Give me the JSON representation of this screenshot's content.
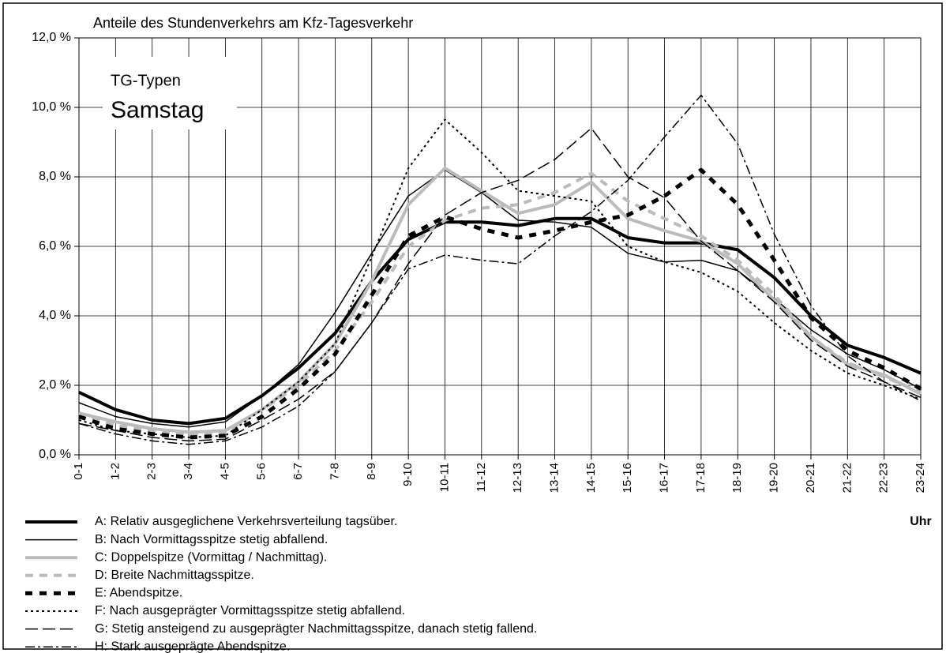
{
  "chart_data": {
    "type": "line",
    "title": "Anteile des Stundenverkehrs am Kfz-Tagesverkehr",
    "inset_title": "TG-Typen",
    "inset_subtitle": "Samstag",
    "x_label": "Uhr",
    "categories": [
      "0-1",
      "1-2",
      "2-3",
      "3-4",
      "4-5",
      "5-6",
      "6-7",
      "7-8",
      "8-9",
      "9-10",
      "10-11",
      "11-12",
      "12-13",
      "13-14",
      "14-15",
      "15-16",
      "16-17",
      "17-18",
      "18-19",
      "19-20",
      "20-21",
      "21-22",
      "22-23",
      "23-24"
    ],
    "ylim": [
      0,
      12
    ],
    "yticks": [
      {
        "value": 0,
        "label": "0,0 %"
      },
      {
        "value": 2,
        "label": "2,0 %"
      },
      {
        "value": 4,
        "label": "4,0 %"
      },
      {
        "value": 6,
        "label": "6,0 %"
      },
      {
        "value": 8,
        "label": "8,0 %"
      },
      {
        "value": 10,
        "label": "10,0 %"
      },
      {
        "value": 12,
        "label": "12,0 %"
      }
    ],
    "grid": true,
    "series": [
      {
        "name": "A: Relativ ausgeglichene Verkehrsverteilung tagsüber.",
        "color": "#000000",
        "values": [
          1.8,
          1.3,
          1.0,
          0.9,
          1.05,
          1.7,
          2.5,
          3.5,
          5.0,
          6.2,
          6.7,
          6.7,
          6.6,
          6.8,
          6.8,
          6.25,
          6.1,
          6.1,
          5.9,
          5.1,
          4.0,
          3.15,
          2.8,
          2.35
        ]
      },
      {
        "name": "B: Nach Vormittagsspitze stetig abfallend.",
        "color": "#000000",
        "values": [
          1.5,
          1.1,
          0.9,
          0.8,
          0.95,
          1.7,
          2.6,
          4.1,
          5.8,
          7.45,
          8.2,
          7.55,
          6.75,
          6.7,
          6.55,
          5.8,
          5.55,
          5.6,
          5.3,
          4.5,
          3.6,
          2.9,
          2.45,
          1.9
        ]
      },
      {
        "name": "C: Doppelspitze (Vormittag / Nachmittag).",
        "color": "#bbbbbb",
        "values": [
          1.2,
          0.95,
          0.75,
          0.65,
          0.7,
          1.3,
          2.1,
          3.2,
          5.0,
          7.2,
          8.25,
          7.6,
          6.95,
          7.2,
          7.85,
          6.8,
          6.45,
          6.15,
          5.5,
          4.45,
          3.4,
          2.6,
          2.3,
          1.75
        ]
      },
      {
        "name": "D: Breite Nachmittagsspitze.",
        "color": "#bbbbbb",
        "values": [
          1.2,
          0.85,
          0.7,
          0.6,
          0.65,
          1.3,
          2.0,
          3.0,
          4.4,
          6.0,
          6.75,
          7.1,
          7.2,
          7.55,
          8.1,
          7.3,
          6.8,
          6.3,
          5.6,
          4.6,
          3.4,
          2.65,
          2.25,
          1.8
        ]
      },
      {
        "name": "E: Abendspitze.",
        "color": "#000000",
        "values": [
          1.1,
          0.75,
          0.6,
          0.5,
          0.55,
          1.1,
          1.9,
          2.9,
          4.6,
          6.3,
          6.85,
          6.5,
          6.25,
          6.45,
          6.7,
          6.9,
          7.45,
          8.2,
          7.2,
          5.6,
          3.95,
          3.0,
          2.5,
          1.9
        ]
      },
      {
        "name": "F: Nach ausgeprägter Vormittagsspitze stetig abfallend.",
        "color": "#000000",
        "values": [
          1.0,
          0.7,
          0.6,
          0.5,
          0.55,
          1.3,
          2.1,
          3.2,
          5.7,
          8.25,
          9.65,
          8.7,
          7.6,
          7.45,
          7.3,
          6.0,
          5.55,
          5.25,
          4.7,
          3.8,
          3.0,
          2.35,
          2.0,
          1.6
        ]
      },
      {
        "name": "G: Stetig ansteigend zu ausgeprägter Nachmittagsspitze, danach stetig fallend.",
        "color": "#000000",
        "values": [
          0.9,
          0.7,
          0.5,
          0.4,
          0.45,
          1.0,
          1.6,
          2.4,
          3.8,
          5.5,
          6.9,
          7.55,
          7.9,
          8.5,
          9.4,
          8.0,
          7.4,
          6.15,
          5.3,
          4.4,
          3.3,
          2.55,
          2.1,
          1.65
        ]
      },
      {
        "name": "H: Stark ausgeprägte Abendspitze.",
        "color": "#000000",
        "values": [
          0.9,
          0.6,
          0.4,
          0.3,
          0.4,
          0.8,
          1.4,
          2.4,
          3.8,
          5.35,
          5.75,
          5.6,
          5.5,
          6.3,
          7.0,
          7.9,
          9.15,
          10.35,
          8.95,
          6.35,
          4.3,
          2.85,
          2.1,
          1.55
        ]
      }
    ]
  }
}
